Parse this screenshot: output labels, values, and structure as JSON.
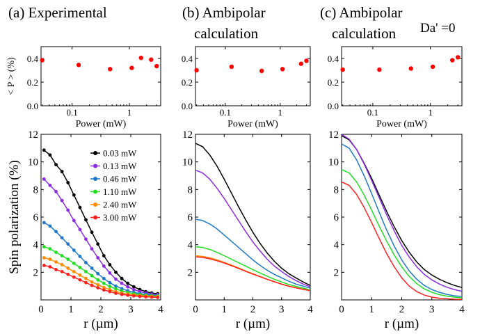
{
  "panels": [
    {
      "title_line1": "(a) Experimental",
      "title_line2": "",
      "title_extra": ""
    },
    {
      "title_line1": "(b) Ambipolar",
      "title_line2": "calculation",
      "title_extra": ""
    },
    {
      "title_line1": "(c) Ambipolar",
      "title_line2": "calculation",
      "title_extra": "Da' =0"
    }
  ],
  "chart_data": [
    {
      "type": "scatter",
      "panel": "a",
      "xscale": "log",
      "xlabel": "Power (mW)",
      "ylabel": "< P > (%)",
      "ylim": [
        0.0,
        0.5
      ],
      "yticks": [
        "0.0",
        "0.2",
        "0.4"
      ],
      "xticks": [
        "0.1",
        "1"
      ],
      "color": "#ff0000",
      "x": [
        0.03,
        0.13,
        0.46,
        1.1,
        1.6,
        2.4,
        3.0
      ],
      "y": [
        0.385,
        0.345,
        0.31,
        0.32,
        0.405,
        0.39,
        0.335
      ]
    },
    {
      "type": "scatter",
      "panel": "b",
      "xscale": "log",
      "xlabel": "Power (mW)",
      "ylabel": "",
      "ylim": [
        0.0,
        0.5
      ],
      "yticks": [
        "0.0",
        "0.2",
        "0.4"
      ],
      "xticks": [
        "0.1",
        "1"
      ],
      "color": "#ff0000",
      "x": [
        0.03,
        0.13,
        0.46,
        1.1,
        2.4,
        3.0
      ],
      "y": [
        0.3,
        0.33,
        0.295,
        0.31,
        0.355,
        0.38
      ]
    },
    {
      "type": "scatter",
      "panel": "c",
      "xscale": "log",
      "xlabel": "Power  (mW)",
      "ylabel": "",
      "ylim": [
        0.0,
        0.5
      ],
      "yticks": [
        "0.0",
        "0.2",
        "0.4"
      ],
      "xticks": [
        "0.1",
        "1"
      ],
      "color": "#ff0000",
      "x": [
        0.03,
        0.13,
        0.46,
        1.1,
        2.4,
        3.0
      ],
      "y": [
        0.305,
        0.305,
        0.315,
        0.33,
        0.385,
        0.41
      ]
    },
    {
      "type": "line",
      "panel": "a",
      "markers": true,
      "xlabel": "r (µm)",
      "ylabel": "Spin polarization (%)",
      "xlim": [
        0,
        4
      ],
      "ylim": [
        0,
        12
      ],
      "xticks": [
        "0",
        "1",
        "2",
        "3",
        "4"
      ],
      "yticks": [
        "2",
        "4",
        "6",
        "8",
        "10",
        "12"
      ],
      "legend": "top-right",
      "series": [
        {
          "name": "0.03 mW",
          "color": "#000000",
          "x": [
            0.1,
            0.3,
            0.5,
            0.7,
            0.9,
            1.1,
            1.3,
            1.5,
            1.7,
            1.9,
            2.1,
            2.3,
            2.5,
            2.7,
            2.9,
            3.1,
            3.3,
            3.5,
            3.7,
            3.9
          ],
          "values": [
            10.85,
            10.5,
            9.8,
            9.3,
            8.5,
            7.6,
            6.7,
            5.8,
            4.9,
            4.05,
            3.2,
            2.55,
            2.0,
            1.55,
            1.2,
            0.95,
            0.75,
            0.6,
            0.5,
            0.45
          ]
        },
        {
          "name": "0.13 mW",
          "color": "#8a2be2",
          "x": [
            0.1,
            0.3,
            0.5,
            0.7,
            0.9,
            1.1,
            1.3,
            1.5,
            1.7,
            1.9,
            2.1,
            2.3,
            2.5,
            2.7,
            2.9,
            3.1,
            3.3,
            3.5,
            3.7,
            3.9
          ],
          "values": [
            8.75,
            8.3,
            7.85,
            7.2,
            6.5,
            5.75,
            5.1,
            4.4,
            3.7,
            3.05,
            2.45,
            1.95,
            1.5,
            1.2,
            0.95,
            0.75,
            0.6,
            0.5,
            0.42,
            0.38
          ]
        },
        {
          "name": "0.46 mW",
          "color": "#1f78c8",
          "x": [
            0.1,
            0.3,
            0.5,
            0.7,
            0.9,
            1.1,
            1.3,
            1.5,
            1.7,
            1.9,
            2.1,
            2.3,
            2.5,
            2.7,
            2.9,
            3.1,
            3.3,
            3.5,
            3.7,
            3.9
          ],
          "values": [
            5.6,
            5.35,
            4.95,
            4.5,
            4.05,
            3.6,
            3.15,
            2.7,
            2.3,
            1.9,
            1.55,
            1.25,
            1.0,
            0.82,
            0.66,
            0.55,
            0.46,
            0.4,
            0.35,
            0.32
          ]
        },
        {
          "name": "1.10 mW",
          "color": "#22dd22",
          "x": [
            0.1,
            0.3,
            0.5,
            0.7,
            0.9,
            1.1,
            1.3,
            1.5,
            1.7,
            1.9,
            2.1,
            2.3,
            2.5,
            2.7,
            2.9,
            3.1,
            3.3,
            3.5,
            3.7,
            3.9
          ],
          "values": [
            3.85,
            3.7,
            3.45,
            3.2,
            2.95,
            2.65,
            2.35,
            2.05,
            1.75,
            1.45,
            1.2,
            0.98,
            0.8,
            0.65,
            0.54,
            0.45,
            0.38,
            0.33,
            0.3,
            0.28
          ]
        },
        {
          "name": "2.40 mW",
          "color": "#ff8c00",
          "x": [
            0.1,
            0.3,
            0.5,
            0.7,
            0.9,
            1.1,
            1.3,
            1.5,
            1.7,
            1.9,
            2.1,
            2.3,
            2.5,
            2.7,
            2.9,
            3.1,
            3.3,
            3.5,
            3.7,
            3.9
          ],
          "values": [
            3.05,
            2.95,
            2.75,
            2.55,
            2.3,
            2.05,
            1.8,
            1.55,
            1.3,
            1.1,
            0.9,
            0.74,
            0.6,
            0.5,
            0.42,
            0.36,
            0.31,
            0.28,
            0.25,
            0.23
          ]
        },
        {
          "name": "3.00 mW",
          "color": "#ff2020",
          "x": [
            0.1,
            0.3,
            0.5,
            0.7,
            0.9,
            1.1,
            1.3,
            1.5,
            1.7,
            1.9,
            2.1,
            2.3,
            2.5,
            2.7,
            2.9,
            3.1,
            3.3,
            3.5,
            3.7,
            3.9
          ],
          "values": [
            2.5,
            2.4,
            2.2,
            2.05,
            1.85,
            1.65,
            1.45,
            1.25,
            1.05,
            0.88,
            0.72,
            0.6,
            0.48,
            0.4,
            0.34,
            0.29,
            0.25,
            0.22,
            0.2,
            0.18
          ]
        }
      ]
    },
    {
      "type": "line",
      "panel": "b",
      "markers": false,
      "xlabel": "r (µm)",
      "ylabel": "",
      "xlim": [
        0,
        4
      ],
      "ylim": [
        0,
        12
      ],
      "xticks": [
        "0",
        "1",
        "2",
        "3",
        "4"
      ],
      "yticks": [
        "2",
        "4",
        "6",
        "8",
        "10",
        "12"
      ],
      "series": [
        {
          "color": "#000000",
          "x": [
            0,
            0.25,
            0.5,
            0.75,
            1,
            1.25,
            1.5,
            1.75,
            2,
            2.25,
            2.5,
            2.75,
            3,
            3.25,
            3.5,
            3.75,
            4
          ],
          "values": [
            11.35,
            11.1,
            10.5,
            9.7,
            8.75,
            7.75,
            6.75,
            5.8,
            4.9,
            4.1,
            3.4,
            2.8,
            2.3,
            1.9,
            1.6,
            1.3,
            1.05
          ]
        },
        {
          "color": "#8a2be2",
          "x": [
            0,
            0.25,
            0.5,
            0.75,
            1,
            1.25,
            1.5,
            1.75,
            2,
            2.25,
            2.5,
            2.75,
            3,
            3.25,
            3.5,
            3.75,
            4
          ],
          "values": [
            9.4,
            9.2,
            8.75,
            8.1,
            7.35,
            6.55,
            5.75,
            4.95,
            4.2,
            3.55,
            2.95,
            2.45,
            2.05,
            1.7,
            1.4,
            1.15,
            0.95
          ]
        },
        {
          "color": "#1f78c8",
          "x": [
            0,
            0.25,
            0.5,
            0.75,
            1,
            1.25,
            1.5,
            1.75,
            2,
            2.25,
            2.5,
            2.75,
            3,
            3.25,
            3.5,
            3.75,
            4
          ],
          "values": [
            5.85,
            5.75,
            5.5,
            5.15,
            4.7,
            4.25,
            3.8,
            3.35,
            2.9,
            2.5,
            2.15,
            1.85,
            1.6,
            1.35,
            1.15,
            1.0,
            0.85
          ]
        },
        {
          "color": "#22dd22",
          "x": [
            0,
            0.25,
            0.5,
            0.75,
            1,
            1.25,
            1.5,
            1.75,
            2,
            2.25,
            2.5,
            2.75,
            3,
            3.25,
            3.5,
            3.75,
            4
          ],
          "values": [
            3.85,
            3.8,
            3.65,
            3.45,
            3.2,
            2.95,
            2.7,
            2.45,
            2.2,
            1.95,
            1.72,
            1.5,
            1.3,
            1.12,
            0.98,
            0.85,
            0.72
          ]
        },
        {
          "color": "#ff8c00",
          "x": [
            0,
            0.25,
            0.5,
            0.75,
            1,
            1.25,
            1.5,
            1.75,
            2,
            2.25,
            2.5,
            2.75,
            3,
            3.25,
            3.5,
            3.75,
            4
          ],
          "values": [
            3.2,
            3.15,
            3.05,
            2.9,
            2.72,
            2.52,
            2.32,
            2.1,
            1.9,
            1.7,
            1.5,
            1.32,
            1.15,
            1.0,
            0.88,
            0.77,
            0.68
          ]
        },
        {
          "color": "#ff2020",
          "x": [
            0,
            0.25,
            0.5,
            0.75,
            1,
            1.25,
            1.5,
            1.75,
            2,
            2.25,
            2.5,
            2.75,
            3,
            3.25,
            3.5,
            3.75,
            4
          ],
          "values": [
            3.12,
            3.08,
            2.98,
            2.84,
            2.67,
            2.48,
            2.28,
            2.07,
            1.87,
            1.68,
            1.49,
            1.31,
            1.14,
            0.99,
            0.87,
            0.76,
            0.67
          ]
        }
      ]
    },
    {
      "type": "line",
      "panel": "c",
      "markers": false,
      "xlabel": "r (µm)",
      "ylabel": "",
      "xlim": [
        0,
        4
      ],
      "ylim": [
        0,
        12
      ],
      "xticks": [
        "0",
        "1",
        "2",
        "3",
        "4"
      ],
      "yticks": [
        "2",
        "4",
        "6",
        "8",
        "10",
        "12"
      ],
      "series": [
        {
          "color": "#000000",
          "x": [
            0,
            0.25,
            0.5,
            0.75,
            1,
            1.25,
            1.5,
            1.75,
            2,
            2.25,
            2.5,
            2.75,
            3,
            3.25,
            3.5,
            3.75,
            4
          ],
          "values": [
            11.9,
            11.6,
            10.9,
            9.9,
            8.8,
            7.6,
            6.4,
            5.3,
            4.3,
            3.45,
            2.75,
            2.2,
            1.8,
            1.5,
            1.25,
            1.05,
            0.9
          ]
        },
        {
          "color": "#8a2be2",
          "x": [
            0,
            0.25,
            0.5,
            0.75,
            1,
            1.25,
            1.5,
            1.75,
            2,
            2.25,
            2.5,
            2.75,
            3,
            3.25,
            3.5,
            3.75,
            4
          ],
          "values": [
            12.0,
            11.65,
            10.9,
            9.85,
            8.65,
            7.4,
            6.15,
            5.0,
            3.95,
            3.1,
            2.4,
            1.85,
            1.45,
            1.15,
            0.92,
            0.75,
            0.62
          ]
        },
        {
          "color": "#1f78c8",
          "x": [
            0,
            0.25,
            0.5,
            0.75,
            1,
            1.25,
            1.5,
            1.75,
            2,
            2.25,
            2.5,
            2.75,
            3,
            3.25,
            3.5,
            3.75,
            4
          ],
          "values": [
            11.3,
            11.0,
            10.15,
            9.0,
            7.7,
            6.35,
            5.05,
            3.9,
            2.9,
            2.1,
            1.5,
            1.05,
            0.75,
            0.55,
            0.4,
            0.3,
            0.25
          ]
        },
        {
          "color": "#22dd22",
          "x": [
            0,
            0.25,
            0.5,
            0.75,
            1,
            1.25,
            1.5,
            1.75,
            2,
            2.25,
            2.5,
            2.75,
            3,
            3.25,
            3.5,
            3.75,
            4
          ],
          "values": [
            9.45,
            9.2,
            8.55,
            7.6,
            6.5,
            5.35,
            4.25,
            3.25,
            2.4,
            1.7,
            1.18,
            0.8,
            0.55,
            0.38,
            0.27,
            0.2,
            0.15
          ]
        },
        {
          "color": "#ff2020",
          "x": [
            0,
            0.25,
            0.5,
            0.75,
            1,
            1.25,
            1.5,
            1.75,
            2,
            2.25,
            2.5,
            2.75,
            3,
            3.25,
            3.5,
            3.75,
            4
          ],
          "values": [
            8.55,
            8.3,
            7.65,
            6.7,
            5.6,
            4.45,
            3.35,
            2.4,
            1.6,
            1.0,
            0.6,
            0.35,
            0.2,
            0.12,
            0.08,
            0.05,
            0.04
          ]
        }
      ]
    }
  ]
}
